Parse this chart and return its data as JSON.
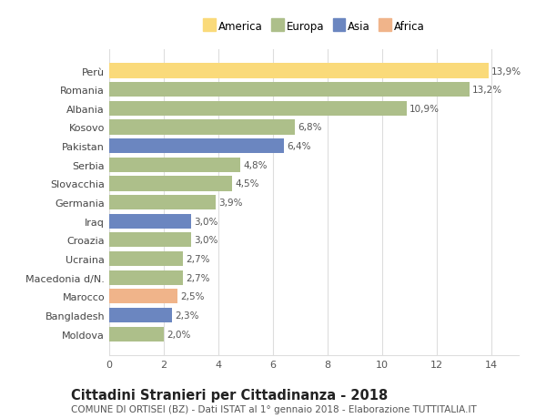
{
  "countries": [
    "Perù",
    "Romania",
    "Albania",
    "Kosovo",
    "Pakistan",
    "Serbia",
    "Slovacchia",
    "Germania",
    "Iraq",
    "Croazia",
    "Ucraina",
    "Macedonia d/N.",
    "Marocco",
    "Bangladesh",
    "Moldova"
  ],
  "values": [
    13.9,
    13.2,
    10.9,
    6.8,
    6.4,
    4.8,
    4.5,
    3.9,
    3.0,
    3.0,
    2.7,
    2.7,
    2.5,
    2.3,
    2.0
  ],
  "continents": [
    "America",
    "Europa",
    "Europa",
    "Europa",
    "Asia",
    "Europa",
    "Europa",
    "Europa",
    "Asia",
    "Europa",
    "Europa",
    "Europa",
    "Africa",
    "Asia",
    "Europa"
  ],
  "colors": {
    "America": "#FADA7A",
    "Europa": "#ADBF8A",
    "Asia": "#6B86C0",
    "Africa": "#F0B48A"
  },
  "legend_order": [
    "America",
    "Europa",
    "Asia",
    "Africa"
  ],
  "xlim": [
    0,
    15
  ],
  "xticks": [
    0,
    2,
    4,
    6,
    8,
    10,
    12,
    14
  ],
  "title": "Cittadini Stranieri per Cittadinanza - 2018",
  "subtitle": "COMUNE DI ORTISEI (BZ) - Dati ISTAT al 1° gennaio 2018 - Elaborazione TUTTITALIA.IT",
  "bg_color": "#ffffff",
  "grid_color": "#dddddd",
  "bar_label_fontsize": 7.5,
  "axis_label_fontsize": 8,
  "title_fontsize": 10.5,
  "subtitle_fontsize": 7.5,
  "bar_height": 0.78
}
